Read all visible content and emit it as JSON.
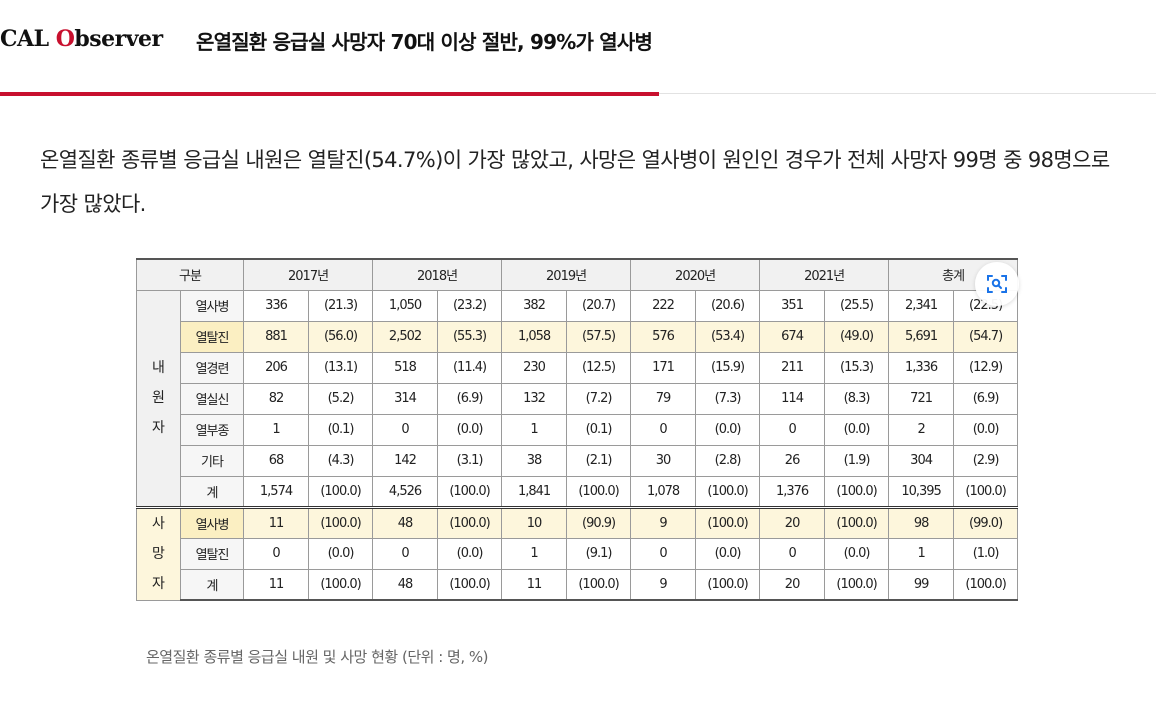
{
  "header": {
    "logo_prefix": "CAL ",
    "logo_o": "O",
    "logo_rest": "bserver",
    "headline": "온열질환 응급실 사망자 70대 이상 절반, 99%가 열사병",
    "read_progress": 0.57,
    "accent_color": "#c8102e"
  },
  "article": {
    "paragraph": "온열질환 종류별 응급실 내원은 열탈진(54.7%)이 가장 많았고, 사망은 열사병이 원인인 경우가 전체 사망자 99명 중 98명으로 가장 많았다."
  },
  "table": {
    "header": {
      "category": "구분",
      "years": [
        "2017년",
        "2018년",
        "2019년",
        "2020년",
        "2021년",
        "총계"
      ]
    },
    "groups": {
      "visitors": "내원자",
      "deaths": "사망자"
    },
    "visitor_rows": [
      {
        "label": "열사병",
        "cells": [
          "336",
          "(21.3)",
          "1,050",
          "(23.2)",
          "382",
          "(20.7)",
          "222",
          "(20.6)",
          "351",
          "(25.5)",
          "2,341",
          "(22.5)"
        ]
      },
      {
        "label": "열탈진",
        "cells": [
          "881",
          "(56.0)",
          "2,502",
          "(55.3)",
          "1,058",
          "(57.5)",
          "576",
          "(53.4)",
          "674",
          "(49.0)",
          "5,691",
          "(54.7)"
        ]
      },
      {
        "label": "열경련",
        "cells": [
          "206",
          "(13.1)",
          "518",
          "(11.4)",
          "230",
          "(12.5)",
          "171",
          "(15.9)",
          "211",
          "(15.3)",
          "1,336",
          "(12.9)"
        ]
      },
      {
        "label": "열실신",
        "cells": [
          "82",
          "(5.2)",
          "314",
          "(6.9)",
          "132",
          "(7.2)",
          "79",
          "(7.3)",
          "114",
          "(8.3)",
          "721",
          "(6.9)"
        ]
      },
      {
        "label": "열부종",
        "cells": [
          "1",
          "(0.1)",
          "0",
          "(0.0)",
          "1",
          "(0.1)",
          "0",
          "(0.0)",
          "0",
          "(0.0)",
          "2",
          "(0.0)"
        ]
      },
      {
        "label": "기타",
        "cells": [
          "68",
          "(4.3)",
          "142",
          "(3.1)",
          "38",
          "(2.1)",
          "30",
          "(2.8)",
          "26",
          "(1.9)",
          "304",
          "(2.9)"
        ]
      },
      {
        "label": "계",
        "cells": [
          "1,574",
          "(100.0)",
          "4,526",
          "(100.0)",
          "1,841",
          "(100.0)",
          "1,078",
          "(100.0)",
          "1,376",
          "(100.0)",
          "10,395",
          "(100.0)"
        ]
      }
    ],
    "death_rows": [
      {
        "label": "열사병",
        "cells": [
          "11",
          "(100.0)",
          "48",
          "(100.0)",
          "10",
          "(90.9)",
          "9",
          "(100.0)",
          "20",
          "(100.0)",
          "98",
          "(99.0)"
        ]
      },
      {
        "label": "열탈진",
        "cells": [
          "0",
          "(0.0)",
          "0",
          "(0.0)",
          "1",
          "(9.1)",
          "0",
          "(0.0)",
          "0",
          "(0.0)",
          "1",
          "(1.0)"
        ]
      },
      {
        "label": "계",
        "cells": [
          "11",
          "(100.0)",
          "48",
          "(100.0)",
          "11",
          "(100.0)",
          "9",
          "(100.0)",
          "20",
          "(100.0)",
          "99",
          "(100.0)"
        ]
      }
    ],
    "highlight_color": "#fdf6dc"
  },
  "zoom": {
    "icon": "zoom-image-icon"
  },
  "caption": "온열질환 종류별 응급실 내원 및 사망 현황 (단위 : 명, %)"
}
